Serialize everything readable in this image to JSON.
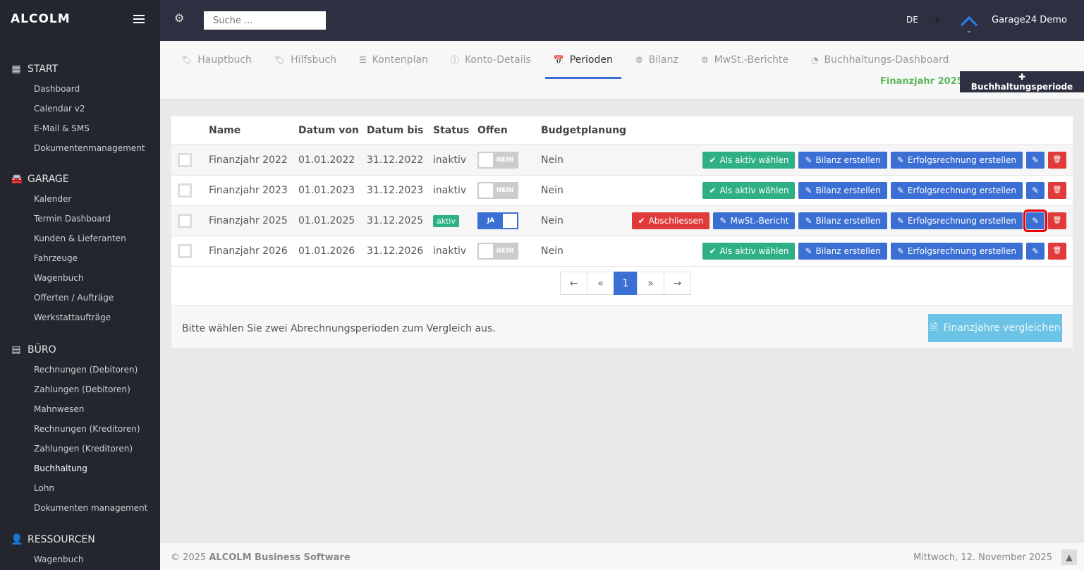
{
  "brand": "ALCOLM",
  "sidebar": {
    "sections": [
      {
        "label": "START",
        "icon": "grid-icon",
        "items": [
          "Dashboard",
          "Calendar v2",
          "E-Mail & SMS",
          "Dokumentenmanagement"
        ]
      },
      {
        "label": "GARAGE",
        "icon": "car-icon",
        "items": [
          "Kalender",
          "Termin Dashboard",
          "Kunden & Lieferanten",
          "Fahrzeuge",
          "Wagenbuch",
          "Offerten / Aufträge",
          "Werkstattaufträge"
        ]
      },
      {
        "label": "BÜRO",
        "icon": "calculator-icon",
        "items": [
          "Rechnungen (Debitoren)",
          "Zahlungen (Debitoren)",
          "Mahnwesen",
          "Rechnungen (Kreditoren)",
          "Zahlungen (Kreditoren)",
          "Buchhaltung",
          "Lohn",
          "Dokumenten management"
        ]
      },
      {
        "label": "RESSOURCEN",
        "icon": "user-icon",
        "items": [
          "Wagenbuch"
        ]
      }
    ],
    "active": "Buchhaltung"
  },
  "topbar": {
    "search_placeholder": "Suche ...",
    "lang": "DE",
    "user": "Garage24 Demo"
  },
  "tabs": [
    {
      "label": "Hauptbuch",
      "icon": "tags-icon"
    },
    {
      "label": "Hilfsbuch",
      "icon": "tags-icon"
    },
    {
      "label": "Kontenplan",
      "icon": "list-icon"
    },
    {
      "label": "Konto-Details",
      "icon": "info-icon"
    },
    {
      "label": "Perioden",
      "icon": "calendar-icon",
      "active": true
    },
    {
      "label": "Bilanz",
      "icon": "cog-icon"
    },
    {
      "label": "MwSt.-Berichte",
      "icon": "cog-icon"
    },
    {
      "label": "Buchhaltungs-Dashboard",
      "icon": "dashboard-icon"
    }
  ],
  "fiscal_year": "Finanzjahr 2025",
  "add_button": "Buchhaltungsperiode",
  "table": {
    "headers": [
      "Name",
      "Datum von",
      "Datum bis",
      "Status",
      "Offen",
      "Budgetplanung"
    ],
    "rows": [
      {
        "name": "Finanzjahr 2022",
        "von": "01.01.2022",
        "bis": "31.12.2022",
        "status": "inaktiv",
        "offen": "NEIN",
        "budget": "Nein"
      },
      {
        "name": "Finanzjahr 2023",
        "von": "01.01.2023",
        "bis": "31.12.2023",
        "status": "inaktiv",
        "offen": "NEIN",
        "budget": "Nein"
      },
      {
        "name": "Finanzjahr 2025",
        "von": "01.01.2025",
        "bis": "31.12.2025",
        "status": "aktiv",
        "offen": "JA",
        "budget": "Nein"
      },
      {
        "name": "Finanzjahr 2026",
        "von": "01.01.2026",
        "bis": "31.12.2026",
        "status": "inaktiv",
        "offen": "NEIN",
        "budget": "Nein"
      }
    ]
  },
  "actions": {
    "activate": "Als aktiv wählen",
    "close": "Abschliessen",
    "vat": "MwSt.-Bericht",
    "balance": "Bilanz erstellen",
    "income": "Erfolgsrechnung erstellen"
  },
  "pager": {
    "prev": "←",
    "first": "«",
    "current": "1",
    "last": "»",
    "next": "→"
  },
  "compare": {
    "hint": "Bitte wählen Sie zwei Abrechnungsperioden zum Vergleich aus.",
    "button": "Finanzjahre vergleichen"
  },
  "footer": {
    "copyright": "© 2025",
    "company": "ALCOLM Business Software",
    "date": "Mittwoch, 12. November 2025"
  },
  "colors": {
    "green": "#2eaf86",
    "blue": "#3b6fd4",
    "red": "#e03a3a",
    "sidebar": "#23262f",
    "topbar": "#2d3040"
  }
}
